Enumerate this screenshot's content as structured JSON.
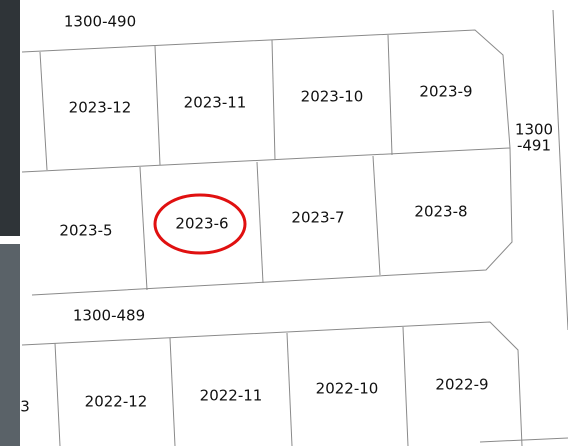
{
  "roads": {
    "north": "1300-490",
    "east": [
      "1300",
      "-491"
    ],
    "middle": "1300-489"
  },
  "lots": {
    "row_1": [
      "2023-12",
      "2023-11",
      "2023-10",
      "2023-9"
    ],
    "row_2": [
      "2023-5",
      "2023-6",
      "2023-7",
      "2023-8"
    ],
    "row_3": [
      "3",
      "2022-12",
      "2022-11",
      "2022-10",
      "2022-9"
    ]
  }
}
